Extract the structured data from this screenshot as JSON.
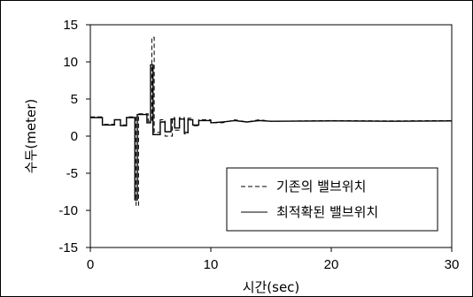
{
  "chart_data": {
    "type": "line",
    "title": "",
    "xlabel": "시간(sec)",
    "ylabel": "수두(meter)",
    "xlim": [
      0,
      30
    ],
    "ylim": [
      -15,
      15
    ],
    "xticks": [
      "0",
      "10",
      "20",
      "30"
    ],
    "yticks": [
      "15",
      "10",
      "5",
      "0",
      "-5",
      "-10",
      "-15"
    ],
    "grid": false,
    "legend_position": "bottom-right",
    "series": [
      {
        "name": "기존의 밸브위치",
        "style": "dashed",
        "points": [
          [
            0,
            2.6
          ],
          [
            1,
            2.6
          ],
          [
            1,
            1.6
          ],
          [
            2,
            1.6
          ],
          [
            2,
            2.2
          ],
          [
            2.5,
            2.2
          ],
          [
            2.5,
            1.5
          ],
          [
            3,
            1.5
          ],
          [
            3,
            2.6
          ],
          [
            3.8,
            2.6
          ],
          [
            3.8,
            -9.4
          ],
          [
            4.0,
            -9.4
          ],
          [
            4.0,
            3.0
          ],
          [
            4.8,
            3.0
          ],
          [
            4.8,
            2.0
          ],
          [
            5.1,
            2.0
          ],
          [
            5.1,
            13.3
          ],
          [
            5.3,
            13.3
          ],
          [
            5.3,
            0.5
          ],
          [
            5.8,
            0.5
          ],
          [
            5.8,
            2.2
          ],
          [
            6.2,
            2.2
          ],
          [
            6.2,
            0.0
          ],
          [
            6.8,
            0.0
          ],
          [
            6.8,
            2.5
          ],
          [
            7.0,
            2.5
          ],
          [
            7.0,
            0.8
          ],
          [
            7.4,
            0.8
          ],
          [
            7.4,
            2.5
          ],
          [
            7.8,
            2.5
          ],
          [
            7.8,
            0.3
          ],
          [
            8.1,
            0.3
          ],
          [
            8.1,
            2.4
          ],
          [
            8.5,
            2.4
          ],
          [
            8.5,
            1.4
          ],
          [
            9,
            1.4
          ],
          [
            9,
            2.2
          ],
          [
            10,
            2.2
          ],
          [
            10,
            1.8
          ],
          [
            11,
            1.8
          ],
          [
            12,
            2.2
          ],
          [
            13,
            1.9
          ],
          [
            14,
            2.2
          ],
          [
            15,
            2.0
          ],
          [
            20,
            2.1
          ],
          [
            25,
            2.05
          ],
          [
            30,
            2.1
          ]
        ]
      },
      {
        "name": "최적확된 밸브위치",
        "style": "solid",
        "points": [
          [
            0,
            2.5
          ],
          [
            1,
            2.5
          ],
          [
            1,
            1.5
          ],
          [
            2,
            1.5
          ],
          [
            2,
            2.2
          ],
          [
            2.5,
            2.2
          ],
          [
            2.5,
            1.4
          ],
          [
            3,
            1.4
          ],
          [
            3,
            2.5
          ],
          [
            3.7,
            2.5
          ],
          [
            3.7,
            -8.6
          ],
          [
            3.9,
            -8.6
          ],
          [
            3.9,
            2.9
          ],
          [
            4.7,
            2.9
          ],
          [
            4.7,
            1.8
          ],
          [
            5.0,
            1.8
          ],
          [
            5.0,
            9.6
          ],
          [
            5.2,
            9.6
          ],
          [
            5.2,
            0.2
          ],
          [
            5.8,
            0.2
          ],
          [
            5.8,
            1.9
          ],
          [
            6.2,
            1.9
          ],
          [
            6.2,
            0.6
          ],
          [
            6.7,
            0.6
          ],
          [
            6.7,
            2.3
          ],
          [
            7.0,
            2.3
          ],
          [
            7.0,
            1.1
          ],
          [
            7.4,
            1.1
          ],
          [
            7.4,
            2.3
          ],
          [
            7.8,
            2.3
          ],
          [
            7.8,
            0.5
          ],
          [
            8.1,
            0.5
          ],
          [
            8.1,
            2.2
          ],
          [
            8.5,
            2.2
          ],
          [
            8.5,
            1.5
          ],
          [
            9,
            1.5
          ],
          [
            9,
            2.1
          ],
          [
            10,
            2.1
          ],
          [
            10,
            1.8
          ],
          [
            11,
            1.9
          ],
          [
            12,
            2.1
          ],
          [
            13,
            1.9
          ],
          [
            14,
            2.1
          ],
          [
            15,
            2.0
          ],
          [
            20,
            2.05
          ],
          [
            25,
            2.0
          ],
          [
            30,
            2.05
          ]
        ]
      }
    ]
  }
}
